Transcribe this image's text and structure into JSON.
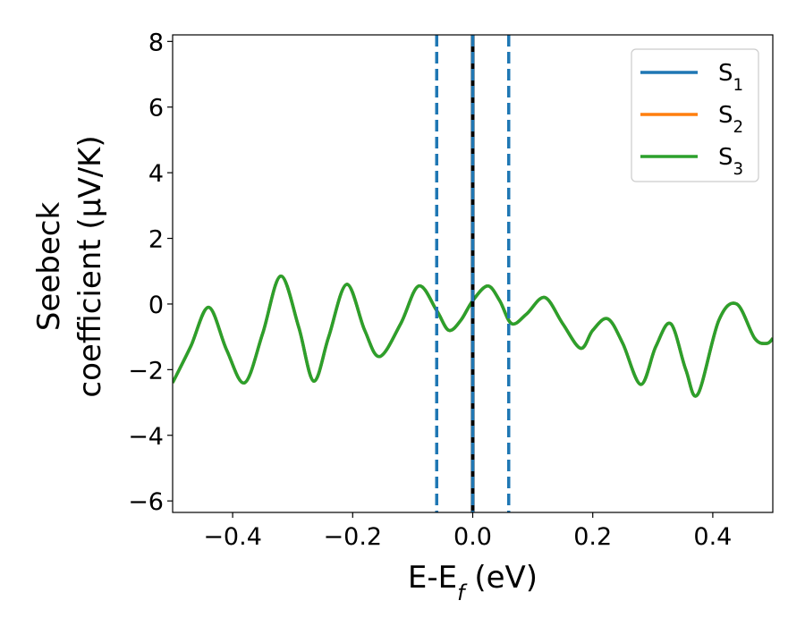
{
  "chart_data": {
    "type": "line",
    "xlabel": "E-E$_f$ (eV)",
    "ylabel_line1": "Seebeck",
    "ylabel_line2": "coefficient  (μV/K)",
    "xlim": [
      -0.5,
      0.5
    ],
    "ylim": [
      -6.35,
      8.2
    ],
    "xticks": [
      -0.4,
      -0.2,
      0.0,
      0.2,
      0.4
    ],
    "xtick_labels": [
      "−0.4",
      "−0.2",
      "0.0",
      "0.2",
      "0.4"
    ],
    "yticks": [
      -6,
      -4,
      -2,
      0,
      2,
      4,
      6,
      8
    ],
    "ytick_labels": [
      "−6",
      "−4",
      "−2",
      "0",
      "2",
      "4",
      "6",
      "8"
    ],
    "grid": false,
    "legend_position": "top-right",
    "x": [
      -0.5,
      -0.47,
      -0.44,
      -0.41,
      -0.38,
      -0.35,
      -0.32,
      -0.29,
      -0.265,
      -0.24,
      -0.21,
      -0.18,
      -0.155,
      -0.12,
      -0.09,
      -0.06,
      -0.04,
      -0.02,
      0.0,
      0.025,
      0.045,
      0.065,
      0.09,
      0.12,
      0.15,
      0.18,
      0.2,
      0.225,
      0.25,
      0.28,
      0.305,
      0.33,
      0.355,
      0.375,
      0.41,
      0.44,
      0.47,
      0.49,
      0.5
    ],
    "series": [
      {
        "name": "S$_1$",
        "color": "#1f77b4",
        "values": [
          -2.4,
          -1.3,
          -0.1,
          -1.4,
          -2.4,
          -0.9,
          0.85,
          -0.7,
          -2.35,
          -1.0,
          0.6,
          -0.8,
          -1.6,
          -0.6,
          0.55,
          -0.2,
          -0.8,
          -0.5,
          0.1,
          0.55,
          0.1,
          -0.6,
          -0.3,
          0.2,
          -0.6,
          -1.35,
          -0.8,
          -0.45,
          -1.2,
          -2.45,
          -1.3,
          -0.6,
          -2.0,
          -2.75,
          -0.5,
          0.0,
          -1.05,
          -1.2,
          -1.05
        ]
      },
      {
        "name": "S$_2$",
        "color": "#ff7f0e",
        "values": [
          -2.4,
          -1.3,
          -0.1,
          -1.4,
          -2.4,
          -0.9,
          0.85,
          -0.7,
          -2.35,
          -1.0,
          0.6,
          -0.8,
          -1.6,
          -0.6,
          0.55,
          -0.2,
          -0.8,
          -0.5,
          0.1,
          0.55,
          0.1,
          -0.6,
          -0.3,
          0.2,
          -0.6,
          -1.35,
          -0.8,
          -0.45,
          -1.2,
          -2.45,
          -1.3,
          -0.6,
          -2.0,
          -2.75,
          -0.5,
          0.0,
          -1.05,
          -1.2,
          -1.05
        ]
      },
      {
        "name": "S$_3$",
        "color": "#2ca02c",
        "values": [
          -2.4,
          -1.3,
          -0.1,
          -1.4,
          -2.4,
          -0.9,
          0.85,
          -0.7,
          -2.35,
          -1.0,
          0.6,
          -0.8,
          -1.6,
          -0.6,
          0.55,
          -0.2,
          -0.8,
          -0.5,
          0.1,
          0.55,
          0.1,
          -0.6,
          -0.3,
          0.2,
          -0.6,
          -1.35,
          -0.8,
          -0.45,
          -1.2,
          -2.45,
          -1.3,
          -0.6,
          -2.0,
          -2.75,
          -0.5,
          0.0,
          -1.05,
          -1.2,
          -1.05
        ]
      }
    ],
    "vertical_lines": [
      {
        "x": -0.06,
        "color": "#1f77b4",
        "style": "dashed"
      },
      {
        "x": 0.0,
        "color": "#000000",
        "style": "solid"
      },
      {
        "x": 0.0,
        "color": "#1f77b4",
        "style": "dashed"
      },
      {
        "x": 0.06,
        "color": "#1f77b4",
        "style": "dashed"
      }
    ]
  }
}
